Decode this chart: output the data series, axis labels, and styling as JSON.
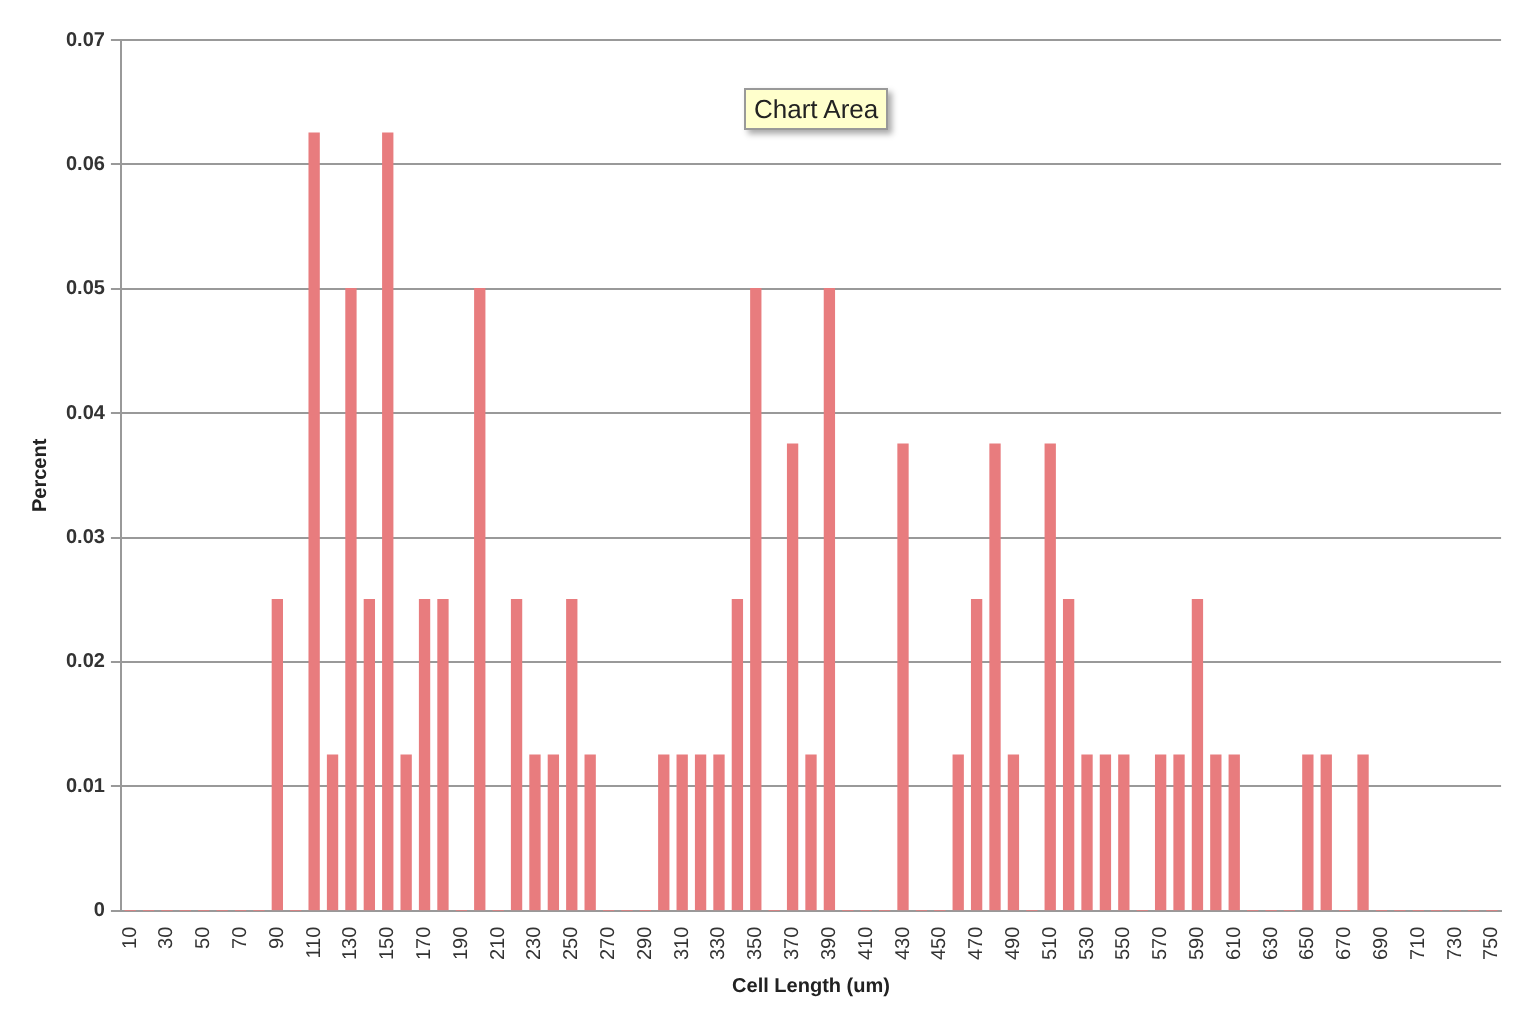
{
  "chart_data": {
    "type": "bar",
    "xlabel": "Cell Length (um)",
    "ylabel": "Percent",
    "annotations": [
      "Chart Area"
    ],
    "categories": [
      "10",
      null,
      "30",
      null,
      "50",
      null,
      "70",
      null,
      "90",
      null,
      "110",
      null,
      "130",
      null,
      "150",
      null,
      "170",
      null,
      "190",
      null,
      "210",
      null,
      "230",
      null,
      "250",
      null,
      "270",
      null,
      "290",
      null,
      "310",
      null,
      "330",
      null,
      "350",
      null,
      "370",
      null,
      "390",
      null,
      "410",
      null,
      "430",
      null,
      "450",
      null,
      "470",
      null,
      "490",
      null,
      "510",
      null,
      "530",
      null,
      "550",
      null,
      "570",
      null,
      "590",
      null,
      "610",
      null,
      "630",
      null,
      "650",
      null,
      "670",
      null,
      "690",
      null,
      "710",
      null,
      "730",
      null,
      "750"
    ],
    "values": [
      0,
      0,
      0,
      0,
      0,
      0,
      0,
      0,
      0.025,
      0,
      0.0625,
      0.0125,
      0.05,
      0.025,
      0.0625,
      0.0125,
      0.025,
      0.025,
      0,
      0.05,
      0,
      0.025,
      0.0125,
      0.0125,
      0.025,
      0.0125,
      0,
      0,
      0,
      0.0125,
      0.0125,
      0.0125,
      0.0125,
      0.025,
      0.05,
      0,
      0.0375,
      0.0125,
      0.05,
      0,
      0,
      0,
      0.0375,
      0,
      0,
      0.0125,
      0.025,
      0.0375,
      0.0125,
      0,
      0.0375,
      0.025,
      0.0125,
      0.0125,
      0.0125,
      0,
      0.0125,
      0.0125,
      0.025,
      0.0125,
      0.0125,
      0,
      0,
      0,
      0.0125,
      0.0125,
      0,
      0.0125,
      0,
      0,
      0,
      0,
      0,
      0,
      0
    ],
    "color": "#e87c7e",
    "ylim": [
      0,
      0.07
    ],
    "yticks": [
      0,
      0.01,
      0.02,
      0.03,
      0.04,
      0.05,
      0.06,
      0.07
    ],
    "grid": "y"
  }
}
